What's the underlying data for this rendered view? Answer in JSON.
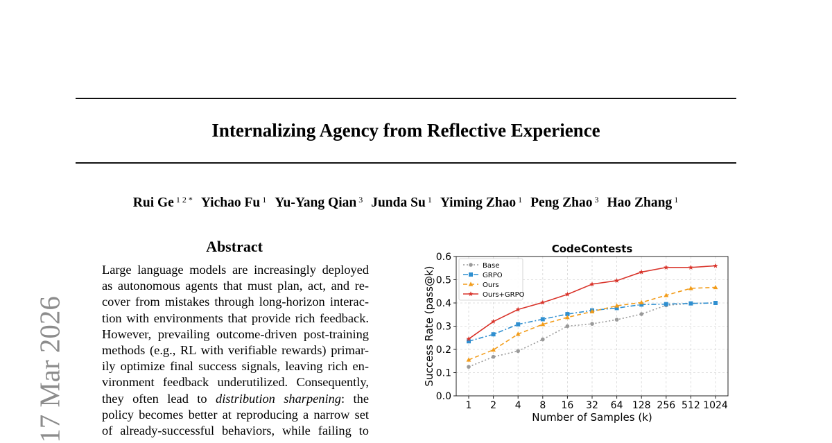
{
  "paper": {
    "title": "Internalizing Agency from Reflective Experience",
    "authors": [
      {
        "name": "Rui Ge",
        "affiliation": "1 2 *"
      },
      {
        "name": "Yichao Fu",
        "affiliation": "1"
      },
      {
        "name": "Yu-Yang Qian",
        "affiliation": "3"
      },
      {
        "name": "Junda Su",
        "affiliation": "1"
      },
      {
        "name": "Yiming Zhao",
        "affiliation": "1"
      },
      {
        "name": "Peng Zhao",
        "affiliation": "3"
      },
      {
        "name": "Hao Zhang",
        "affiliation": "1"
      }
    ],
    "arxiv_stamp": "17 Mar 2026",
    "abstract_heading": "Abstract",
    "abstract_lines": [
      [
        "Large language models are increasingly deployed"
      ],
      [
        "as autonomous agents that must plan, act, and re-"
      ],
      [
        "cover from mistakes through long-horizon interac-"
      ],
      [
        "tion with environments that provide rich feedback."
      ],
      [
        "However, prevailing outcome-driven post-training"
      ],
      [
        "methods (e.g., RL with verifiable rewards) primar-"
      ],
      [
        "ily optimize final success signals, leaving rich en-"
      ],
      [
        "vironment feedback underutilized. Consequently,"
      ],
      [
        "they often lead to ",
        "distribution sharpening",
        ": the"
      ],
      [
        "policy becomes better at reproducing a narrow set"
      ],
      [
        "of already-successful behaviors, while failing to"
      ]
    ]
  },
  "chart_data": {
    "type": "line",
    "title": "CodeContests",
    "xlabel": "Number of Samples (k)",
    "ylabel": "Success Rate (pass@k)",
    "categories": [
      "1",
      "2",
      "4",
      "8",
      "16",
      "32",
      "64",
      "128",
      "256",
      "512",
      "1024"
    ],
    "ylim": [
      0.0,
      0.6
    ],
    "yticks": [
      "0.0",
      "0.1",
      "0.2",
      "0.3",
      "0.4",
      "0.5",
      "0.6"
    ],
    "grid": true,
    "legend_position": "top-left",
    "series": [
      {
        "name": "Base",
        "color": "#9a9a9a",
        "marker": "circle",
        "dash": "dotted",
        "values": [
          0.125,
          0.168,
          0.193,
          0.243,
          0.3,
          0.31,
          0.328,
          0.352,
          0.39,
          0.398,
          0.4
        ]
      },
      {
        "name": "GRPO",
        "color": "#2f8fd0",
        "marker": "square",
        "dash": "dashdot",
        "values": [
          0.235,
          0.265,
          0.308,
          0.33,
          0.352,
          0.368,
          0.378,
          0.393,
          0.395,
          0.398,
          0.4
        ]
      },
      {
        "name": "Ours",
        "color": "#f29c1a",
        "marker": "triangle",
        "dash": "dashed",
        "values": [
          0.155,
          0.198,
          0.266,
          0.308,
          0.338,
          0.363,
          0.388,
          0.402,
          0.433,
          0.463,
          0.467
        ]
      },
      {
        "name": "Ours+GRPO",
        "color": "#d9342b",
        "marker": "star",
        "dash": "solid",
        "values": [
          0.245,
          0.32,
          0.372,
          0.402,
          0.437,
          0.481,
          0.496,
          0.533,
          0.553,
          0.553,
          0.56
        ]
      }
    ]
  }
}
